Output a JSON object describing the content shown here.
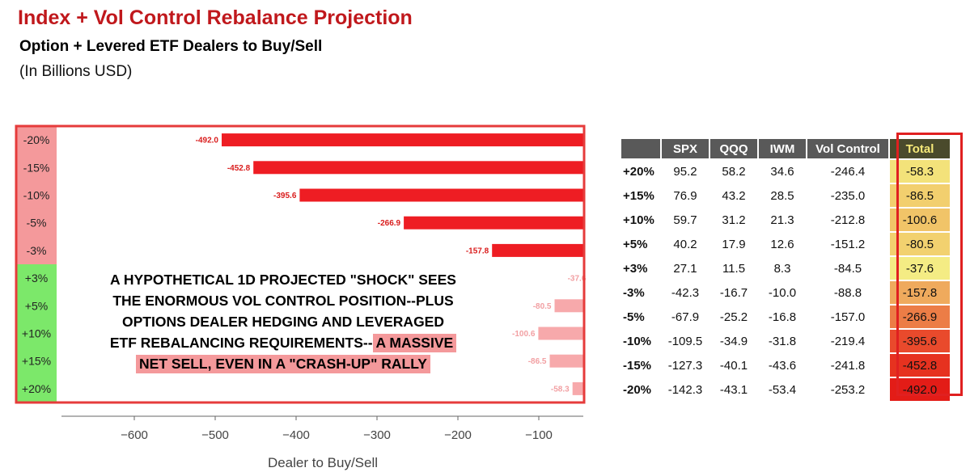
{
  "header": {
    "title": "Index + Vol Control Rebalance Projection",
    "subtitle": "Option + Levered ETF Dealers to Buy/Sell",
    "units": "(In Billions USD)"
  },
  "chart_data": {
    "type": "bar",
    "orientation": "horizontal",
    "categories": [
      "-20%",
      "-15%",
      "-10%",
      "-5%",
      "-3%",
      "+3%",
      "+5%",
      "+10%",
      "+15%",
      "+20%"
    ],
    "values": [
      -492.0,
      -452.8,
      -395.6,
      -266.9,
      -157.8,
      -37.6,
      -80.5,
      -100.6,
      -86.5,
      -58.3
    ],
    "data_labels": [
      "-492.0",
      "-452.8",
      "-395.6",
      "-266.9",
      "-157.8",
      "-37.6",
      "-80.5",
      "-100.6",
      "-86.5",
      "-58.3"
    ],
    "xlabel": "Dealer to Buy/Sell",
    "ylabel": "",
    "xlim": [
      -690,
      -45
    ],
    "xticks": [
      -600,
      -500,
      -400,
      -300,
      -200,
      -100
    ],
    "xtick_labels": [
      "−600",
      "−500",
      "−400",
      "−300",
      "−200",
      "−100"
    ],
    "colors": {
      "down": "#ee1d23",
      "up": "#f7a9ab",
      "down_label": "#d91c1c",
      "up_label": "#f2a0a3",
      "down_band": "#f4999b",
      "up_band": "#7ce86a"
    },
    "grid": false
  },
  "callout": {
    "lines": [
      "A HYPOTHETICAL 1D PROJECTED \"SHOCK\" SEES",
      "THE ENORMOUS VOL CONTROL POSITION--PLUS",
      "OPTIONS DEALER HEDGING AND LEVERAGED"
    ],
    "line4_plain": "ETF REBALANCING REQUIREMENTS--",
    "line4_highlight": "A MASSIVE",
    "line5_highlight": "NET SELL, EVEN IN A \"CRASH-UP\" RALLY"
  },
  "table": {
    "headers": [
      "",
      "SPX",
      "QQQ",
      "IWM",
      "Vol Control",
      "Total"
    ],
    "rows": [
      {
        "label": "+20%",
        "spx": "95.2",
        "qqq": "58.2",
        "iwm": "34.6",
        "vol": "-246.4",
        "total": "-58.3",
        "color": "#f3e27a"
      },
      {
        "label": "+15%",
        "spx": "76.9",
        "qqq": "43.2",
        "iwm": "28.5",
        "vol": "-235.0",
        "total": "-86.5",
        "color": "#f2cf6e"
      },
      {
        "label": "+10%",
        "spx": "59.7",
        "qqq": "31.2",
        "iwm": "21.3",
        "vol": "-212.8",
        "total": "-100.6",
        "color": "#f1c468"
      },
      {
        "label": "+5%",
        "spx": "40.2",
        "qqq": "17.9",
        "iwm": "12.6",
        "vol": "-151.2",
        "total": "-80.5",
        "color": "#f2d16f"
      },
      {
        "label": "+3%",
        "spx": "27.1",
        "qqq": "11.5",
        "iwm": "8.3",
        "vol": "-84.5",
        "total": "-37.6",
        "color": "#f4ec84"
      },
      {
        "label": "-3%",
        "spx": "-42.3",
        "qqq": "-16.7",
        "iwm": "-10.0",
        "vol": "-88.8",
        "total": "-157.8",
        "color": "#efaa5d"
      },
      {
        "label": "-5%",
        "spx": "-67.9",
        "qqq": "-25.2",
        "iwm": "-16.8",
        "vol": "-157.0",
        "total": "-266.9",
        "color": "#ec7d46"
      },
      {
        "label": "-10%",
        "spx": "-109.5",
        "qqq": "-34.9",
        "iwm": "-31.8",
        "vol": "-219.4",
        "total": "-395.6",
        "color": "#e94a2c"
      },
      {
        "label": "-15%",
        "spx": "-127.3",
        "qqq": "-40.1",
        "iwm": "-43.6",
        "vol": "-241.8",
        "total": "-452.8",
        "color": "#e6321f"
      },
      {
        "label": "-20%",
        "spx": "-142.3",
        "qqq": "-43.1",
        "iwm": "-53.4",
        "vol": "-253.2",
        "total": "-492.0",
        "color": "#e31c17"
      }
    ]
  }
}
